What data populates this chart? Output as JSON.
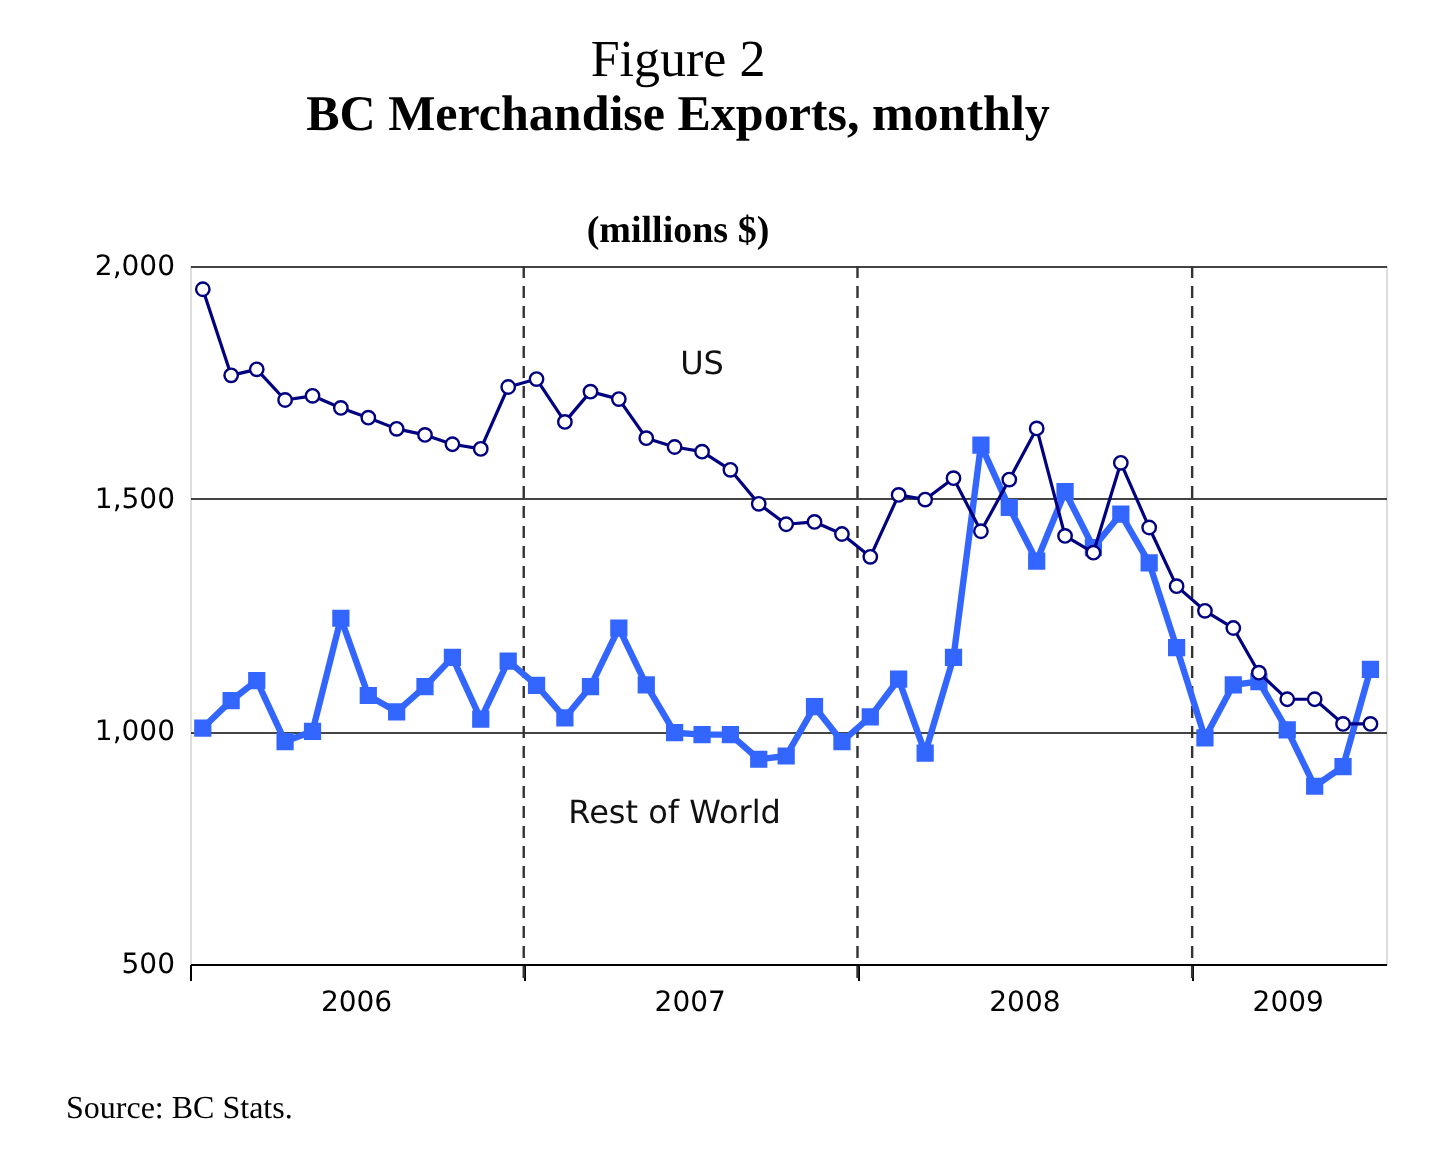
{
  "chart_data": {
    "type": "line",
    "title": "Figure 2",
    "subtitle": "BC Merchandise Exports, monthly",
    "ylabel": "(millions $)",
    "x": [
      "2006-01-15",
      "2006-02-15",
      "2006-03-15",
      "2006-04-15",
      "2006-05-15",
      "2006-06-15",
      "2006-07-15",
      "2006-08-15",
      "2006-09-15",
      "2006-10-15",
      "2006-11-15",
      "2006-12-15",
      "2007-01-15",
      "2007-02-15",
      "2007-03-15",
      "2007-04-15",
      "2007-05-15",
      "2007-06-15",
      "2007-07-15",
      "2007-08-15",
      "2007-09-15",
      "2007-10-15",
      "2007-11-15",
      "2007-12-15",
      "2008-01-15",
      "2008-02-15",
      "2008-03-15",
      "2008-04-15",
      "2008-05-15",
      "2008-06-15",
      "2008-07-15",
      "2008-08-15",
      "2008-09-15",
      "2008-10-15",
      "2008-11-15",
      "2008-12-15",
      "2009-01-15",
      "2009-02-15",
      "2009-03-15",
      "2009-04-15",
      "2009-05-15",
      "2009-06-15",
      "2009-07-15"
    ],
    "series": [
      {
        "name": "US",
        "color": "#000080",
        "marker": "circle",
        "values": [
          1950,
          1765,
          1778,
          1712,
          1721,
          1695,
          1674,
          1650,
          1637,
          1617,
          1607,
          1740,
          1757,
          1665,
          1730,
          1714,
          1630,
          1611,
          1601,
          1562,
          1489,
          1445,
          1450,
          1424,
          1375,
          1508,
          1498,
          1544,
          1430,
          1541,
          1651,
          1420,
          1384,
          1577,
          1438,
          1312,
          1259,
          1222,
          1126,
          1069,
          1069,
          1016,
          1016
        ]
      },
      {
        "name": "Rest of World",
        "color": "#3366ff",
        "marker": "square",
        "values": [
          1007,
          1066,
          1109,
          978,
          1000,
          1243,
          1077,
          1042,
          1096,
          1159,
          1026,
          1151,
          1099,
          1029,
          1096,
          1222,
          1100,
          997,
          993,
          993,
          940,
          947,
          1053,
          978,
          1031,
          1112,
          953,
          1159,
          1615,
          1481,
          1366,
          1515,
          1395,
          1467,
          1362,
          1180,
          986,
          1100,
          1107,
          1003,
          882,
          924,
          1133
        ]
      }
    ],
    "xlim": [
      "2006-01-01",
      "2009-08-01"
    ],
    "xticks": [
      {
        "value": "2006-01-01",
        "label": null
      },
      {
        "value": "2006-07-01",
        "label": "2006"
      },
      {
        "value": "2007-01-01",
        "label": null
      },
      {
        "value": "2007-07-01",
        "label": "2007"
      },
      {
        "value": "2008-01-01",
        "label": null
      },
      {
        "value": "2008-07-01",
        "label": "2008"
      },
      {
        "value": "2009-01-01",
        "label": null
      },
      {
        "value": "2009-04-15",
        "label": "2009"
      }
    ],
    "ylim": [
      500,
      2000
    ],
    "yticks": [
      {
        "value": 500,
        "label": "500"
      },
      {
        "value": 1000,
        "label": "1,000"
      },
      {
        "value": 1500,
        "label": "1,500"
      },
      {
        "value": 2000,
        "label": "2,000"
      }
    ],
    "grid": "y",
    "ref_lines": [
      {
        "axis": "x",
        "value": "2007-01-01",
        "line_style": "dashed"
      },
      {
        "axis": "x",
        "value": "2008-01-01",
        "line_style": "dashed"
      },
      {
        "axis": "x",
        "value": "2009-01-01",
        "line_style": "dashed"
      }
    ],
    "annotations": [
      "Source:  BC Stats."
    ]
  }
}
